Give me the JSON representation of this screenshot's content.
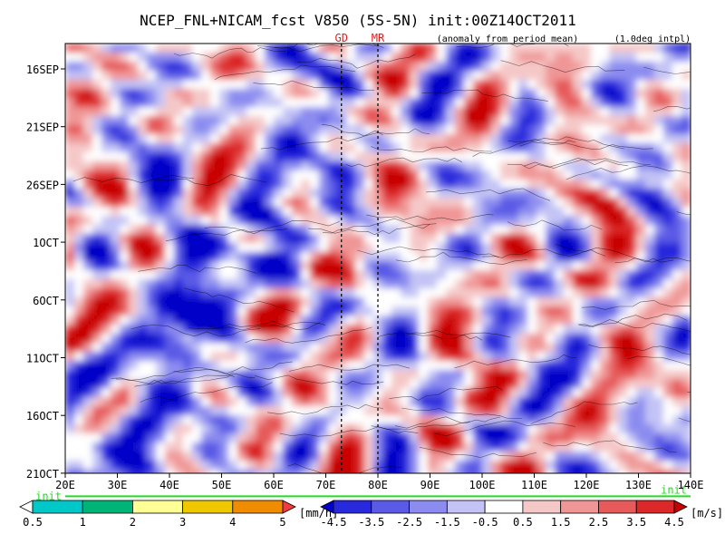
{
  "chart_data": {
    "type": "heatmap",
    "title": "NCEP_FNL+NICAM_fcst V850 (5S-5N) init:00Z14OCT2011",
    "subtitle": "(anomaly from period mean)",
    "note": "(1.0deg intpl)",
    "markers": [
      {
        "label": "GD",
        "lon": 73
      },
      {
        "label": "MR",
        "lon": 80
      }
    ],
    "init_label": "init",
    "init_row": 7.4,
    "x_ticks": [
      "20E",
      "30E",
      "40E",
      "50E",
      "60E",
      "70E",
      "80E",
      "90E",
      "100E",
      "110E",
      "120E",
      "130E",
      "140E"
    ],
    "x_range": [
      20,
      140
    ],
    "y_ticks": [
      "16SEP",
      "21SEP",
      "26SEP",
      "1OCT",
      "6OCT",
      "11OCT",
      "16OCT",
      "21OCT"
    ],
    "colorbar_rain": {
      "labels": [
        "0.5",
        "1",
        "2",
        "3",
        "4",
        "5"
      ],
      "unit": "[mm/h]",
      "colors": [
        "#ffffff",
        "#00c8c8",
        "#00b478",
        "#ffff96",
        "#f0c800",
        "#f08c00",
        "#f03c3c"
      ]
    },
    "colorbar_wind": {
      "labels": [
        "-4.5",
        "-3.5",
        "-2.5",
        "-1.5",
        "-0.5",
        "0.5",
        "1.5",
        "2.5",
        "3.5",
        "4.5"
      ],
      "unit": "[m/s]",
      "colors": [
        "#0000c8",
        "#2828dc",
        "#5a5ae6",
        "#8c8cf0",
        "#c3c3f5",
        "#ffffff",
        "#f5c8c8",
        "#f09696",
        "#e65a5a",
        "#dc2828",
        "#c80000"
      ]
    }
  }
}
